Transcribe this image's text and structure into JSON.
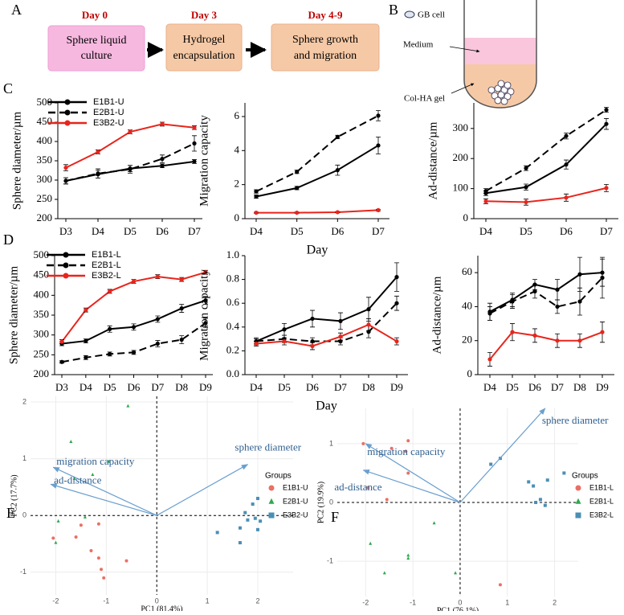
{
  "panel_labels": [
    "A",
    "B",
    "C",
    "D",
    "E",
    "F"
  ],
  "flow": {
    "steps": [
      {
        "day": "Day 0",
        "label": [
          "Sphere liquid",
          "culture"
        ]
      },
      {
        "day": "Day 3",
        "label": [
          "Hydrogel",
          "encapsulation"
        ]
      },
      {
        "day": "Day 4-9",
        "label": [
          "Sphere growth",
          "and migration"
        ]
      }
    ]
  },
  "tube": {
    "cell": "GB cell",
    "medium": "Medium",
    "gel": "Col-HA gel"
  },
  "chart_data": [
    {
      "type": "line",
      "ylabel": "Sphere diameter/µm",
      "categories": [
        "D3",
        "D4",
        "D5",
        "D6",
        "D7"
      ],
      "ylim": [
        200,
        500
      ],
      "yticks": [
        200,
        250,
        300,
        350,
        400,
        450,
        500
      ],
      "legend": true,
      "series": [
        {
          "name": "E1B1-U",
          "color": "#000000",
          "linestyle": "solid",
          "values": [
            298,
            315,
            330,
            337,
            348
          ],
          "errors": [
            8,
            10,
            8,
            5,
            5
          ]
        },
        {
          "name": "E2B1-U",
          "color": "#000000",
          "linestyle": "dashed",
          "values": [
            298,
            317,
            328,
            355,
            395
          ],
          "errors": [
            8,
            12,
            10,
            10,
            20
          ]
        },
        {
          "name": "E3B2-U",
          "color": "#e8251c",
          "linestyle": "solid",
          "values": [
            332,
            373,
            425,
            445,
            436
          ],
          "errors": [
            8,
            5,
            5,
            5,
            5
          ]
        }
      ]
    },
    {
      "type": "line",
      "ylabel": "Migration capacity",
      "xlabel": "Day",
      "categories": [
        "D4",
        "D5",
        "D6",
        "D7"
      ],
      "ylim": [
        0,
        6.8
      ],
      "yticks": [
        0,
        2,
        4,
        6
      ],
      "series": [
        {
          "color": "#000000",
          "linestyle": "solid",
          "values": [
            1.3,
            1.8,
            2.85,
            4.3
          ],
          "errors": [
            0.1,
            0.1,
            0.3,
            0.5
          ]
        },
        {
          "color": "#000000",
          "linestyle": "dashed",
          "values": [
            1.6,
            2.75,
            4.8,
            6.05
          ],
          "errors": [
            0.1,
            0.1,
            0.1,
            0.3
          ]
        },
        {
          "color": "#e8251c",
          "linestyle": "solid",
          "values": [
            0.35,
            0.35,
            0.38,
            0.5
          ],
          "errors": [
            0.03,
            0.03,
            0.03,
            0.05
          ]
        }
      ]
    },
    {
      "type": "line",
      "ylabel": "Ad-distance/µm",
      "categories": [
        "D4",
        "D5",
        "D6",
        "D7"
      ],
      "ylim": [
        0,
        385
      ],
      "yticks": [
        0,
        100,
        200,
        300
      ],
      "series": [
        {
          "color": "#000000",
          "linestyle": "solid",
          "values": [
            85,
            105,
            180,
            315
          ],
          "errors": [
            8,
            10,
            15,
            18
          ]
        },
        {
          "color": "#000000",
          "linestyle": "dashed",
          "values": [
            92,
            168,
            275,
            362
          ],
          "errors": [
            8,
            8,
            10,
            8
          ]
        },
        {
          "color": "#e8251c",
          "linestyle": "solid",
          "values": [
            58,
            55,
            70,
            102
          ],
          "errors": [
            8,
            10,
            12,
            12
          ]
        }
      ]
    },
    {
      "type": "line",
      "ylabel": "Sphere diameter/µm",
      "categories": [
        "D3",
        "D4",
        "D5",
        "D6",
        "D7",
        "D8",
        "D9"
      ],
      "ylim": [
        200,
        500
      ],
      "yticks": [
        200,
        250,
        300,
        350,
        400,
        450,
        500
      ],
      "legend": true,
      "series": [
        {
          "name": "E1B1-L",
          "color": "#000000",
          "linestyle": "solid",
          "values": [
            278,
            285,
            315,
            320,
            340,
            367,
            387
          ],
          "errors": [
            5,
            5,
            8,
            8,
            8,
            10,
            10
          ]
        },
        {
          "name": "E2B1-L",
          "color": "#000000",
          "linestyle": "dashed",
          "values": [
            232,
            243,
            252,
            256,
            278,
            288,
            330
          ],
          "errors": [
            3,
            5,
            5,
            5,
            8,
            10,
            12
          ]
        },
        {
          "name": "E3B2-L",
          "color": "#e8251c",
          "linestyle": "solid",
          "values": [
            283,
            363,
            410,
            435,
            447,
            440,
            458
          ],
          "errors": [
            5,
            5,
            5,
            5,
            5,
            5,
            5
          ]
        }
      ]
    },
    {
      "type": "line",
      "ylabel": "Migration capacity",
      "xlabel": "Day",
      "categories": [
        "D4",
        "D5",
        "D6",
        "D7",
        "D8",
        "D9"
      ],
      "ylim": [
        0,
        1
      ],
      "yticks": [
        {
          "value": 0,
          "label": "0.0"
        },
        0.2,
        0.4,
        0.6,
        0.8,
        {
          "value": 1,
          "label": "1.0"
        }
      ],
      "series": [
        {
          "color": "#000000",
          "linestyle": "solid",
          "values": [
            0.28,
            0.38,
            0.47,
            0.45,
            0.55,
            0.82
          ],
          "errors": [
            0.03,
            0.05,
            0.07,
            0.07,
            0.1,
            0.12
          ]
        },
        {
          "color": "#000000",
          "linestyle": "dashed",
          "values": [
            0.28,
            0.3,
            0.28,
            0.28,
            0.36,
            0.6
          ],
          "errors": [
            0.02,
            0.03,
            0.03,
            0.03,
            0.05,
            0.06
          ]
        },
        {
          "color": "#e8251c",
          "linestyle": "solid",
          "values": [
            0.26,
            0.28,
            0.24,
            0.32,
            0.42,
            0.28
          ],
          "errors": [
            0.02,
            0.03,
            0.03,
            0.03,
            0.05,
            0.03
          ]
        }
      ]
    },
    {
      "type": "line",
      "ylabel": "Ad-distance/µm",
      "categories": [
        "D4",
        "D5",
        "D6",
        "D7",
        "D8",
        "D9"
      ],
      "ylim": [
        0,
        70
      ],
      "yticks": [
        0,
        20,
        40,
        60
      ],
      "series": [
        {
          "color": "#000000",
          "linestyle": "solid",
          "values": [
            37,
            44,
            53,
            50,
            59,
            60
          ],
          "errors": [
            5,
            4,
            3,
            6,
            10,
            8
          ]
        },
        {
          "color": "#000000",
          "linestyle": "dashed",
          "values": [
            36,
            43,
            49,
            40,
            43,
            57
          ],
          "errors": [
            4,
            4,
            4,
            4,
            8,
            12
          ]
        },
        {
          "color": "#e8251c",
          "linestyle": "solid",
          "values": [
            9,
            25,
            23,
            20,
            20,
            25
          ],
          "errors": [
            4,
            5,
            4,
            4,
            4,
            6
          ]
        }
      ]
    },
    {
      "type": "biplot",
      "xlabel": "PC1 (81.4%)",
      "ylabel": "PC2 (17.7%)",
      "xlim": [
        -2.5,
        2.7
      ],
      "ylim": [
        -1.4,
        2.1
      ],
      "xticks": [
        -2,
        -1,
        0,
        1,
        2
      ],
      "yticks": [
        -1,
        0,
        1,
        2
      ],
      "legend_title": "Groups",
      "series": [
        {
          "name": "E1B1-U",
          "color": "#ea6f66",
          "marker": "circle",
          "x": [
            -2.05,
            -1.6,
            -1.5,
            -1.15,
            -1.15,
            -1.1,
            -1.05,
            -0.6,
            -1.3
          ],
          "y": [
            -0.4,
            -0.38,
            -0.17,
            -0.15,
            -0.75,
            -0.95,
            -1.1,
            -0.8,
            -0.62
          ]
        },
        {
          "name": "E2B1-U",
          "color": "#2fa84f",
          "marker": "triangle",
          "x": [
            -0.57,
            -1.7,
            -0.95,
            -1.63,
            -1.95,
            -2.0,
            -1.42,
            -1.27
          ],
          "y": [
            1.93,
            1.3,
            0.95,
            0.65,
            -0.1,
            -0.48,
            -0.03,
            0.72
          ]
        },
        {
          "name": "E3B2-U",
          "color": "#4a8fb5",
          "marker": "square",
          "x": [
            1.2,
            1.65,
            1.65,
            1.9,
            1.75,
            2.0,
            1.95,
            2.05,
            2.0,
            1.8
          ],
          "y": [
            -0.3,
            -0.22,
            -0.48,
            0.2,
            0.05,
            0.3,
            -0.05,
            -0.1,
            -0.25,
            -0.08
          ]
        }
      ],
      "arrows": [
        {
          "label": "sphere diameter",
          "x": 1.8,
          "y": 0.9
        },
        {
          "label": "migration capacity",
          "x": -2.05,
          "y": 0.85
        },
        {
          "label": "ad-distance",
          "x": -2.1,
          "y": 0.55
        }
      ]
    },
    {
      "type": "biplot",
      "xlabel": "PC1 (76.1%)",
      "ylabel": "PC2 (19.9%)",
      "xlim": [
        -2.6,
        2.5
      ],
      "ylim": [
        -1.6,
        1.6
      ],
      "xticks": [
        -2,
        -1,
        0,
        1,
        2
      ],
      "yticks": [
        -1,
        0,
        1
      ],
      "legend_title": "Groups",
      "series": [
        {
          "name": "E1B1-L",
          "color": "#ea6f66",
          "marker": "circle",
          "x": [
            -2.05,
            -1.45,
            -1.1,
            -1.15,
            -1.1,
            -1.95,
            -1.55,
            0.85
          ],
          "y": [
            1.0,
            0.92,
            1.05,
            0.87,
            0.5,
            0.25,
            0.05,
            -1.4
          ]
        },
        {
          "name": "E2B1-L",
          "color": "#2fa84f",
          "marker": "triangle",
          "x": [
            -1.9,
            -1.6,
            -1.1,
            -0.55,
            -0.1,
            -1.1
          ],
          "y": [
            -0.7,
            -1.2,
            -0.95,
            -0.35,
            -1.2,
            -0.9
          ]
        },
        {
          "name": "E3B2-L",
          "color": "#4a8fb5",
          "marker": "square",
          "x": [
            0.65,
            0.85,
            1.45,
            1.55,
            1.7,
            1.85,
            1.8,
            2.2,
            1.6
          ],
          "y": [
            0.65,
            0.75,
            0.35,
            0.28,
            0.05,
            0.38,
            -0.05,
            0.5,
            0.0
          ]
        }
      ],
      "arrows": [
        {
          "label": "sphere diameter",
          "x": 1.8,
          "y": 1.6
        },
        {
          "label": "migration capacity",
          "x": -2.0,
          "y": 1.0
        },
        {
          "label": "ad-distance",
          "x": -2.05,
          "y": 0.55
        }
      ]
    }
  ]
}
